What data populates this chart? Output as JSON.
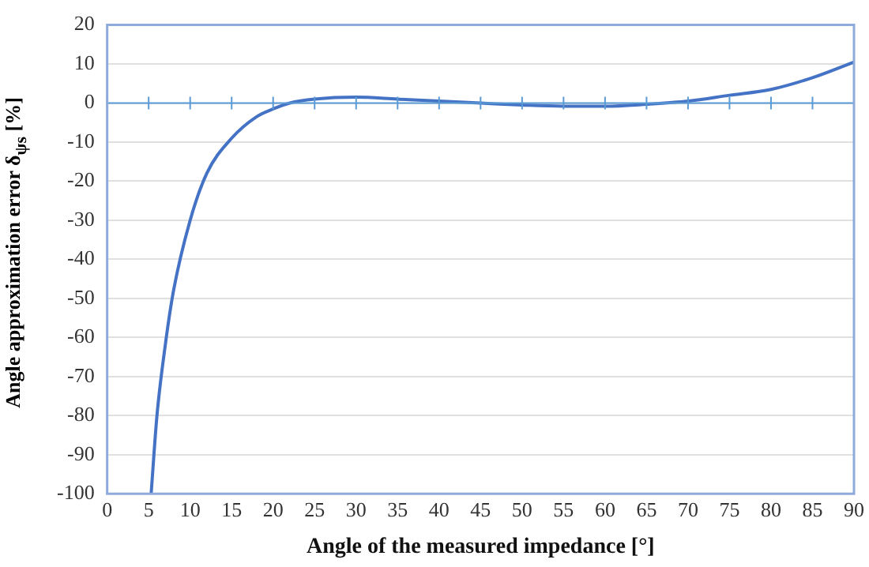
{
  "chart_data": {
    "type": "line",
    "xlabel": "Angle of the measured impedance [°]",
    "ylabel": "Angle approximation error  δ$_{ψs}$ [%]",
    "x": [
      5.3,
      6,
      7,
      8,
      10,
      12,
      15,
      18,
      20,
      22,
      25,
      30,
      35,
      40,
      45,
      50,
      55,
      60,
      65,
      70,
      75,
      80,
      85,
      90
    ],
    "series": [
      {
        "color": "#4472c4",
        "values": [
          -100,
          -80,
          -62,
          -48,
          -30,
          -18,
          -9,
          -3.5,
          -1.5,
          0,
          1,
          1.5,
          1,
          0.5,
          0,
          -0.5,
          -0.8,
          -0.8,
          -0.3,
          0.5,
          2,
          3.5,
          6.5,
          10.5
        ]
      }
    ],
    "xlim": [
      0,
      90
    ],
    "xticks": [
      0,
      5,
      10,
      15,
      20,
      25,
      30,
      35,
      40,
      45,
      50,
      55,
      60,
      65,
      70,
      75,
      80,
      85,
      90
    ],
    "ylim": [
      -100,
      20
    ],
    "yticks": [
      -100,
      -90,
      -80,
      -70,
      -60,
      -50,
      -40,
      -30,
      -20,
      -10,
      0,
      10,
      20
    ],
    "grid": "y",
    "legend": false,
    "marker": "none",
    "line_style": "solid",
    "ref_lines": [
      {
        "axis": "y",
        "value": 0,
        "color": "#5b9bd5"
      }
    ]
  }
}
